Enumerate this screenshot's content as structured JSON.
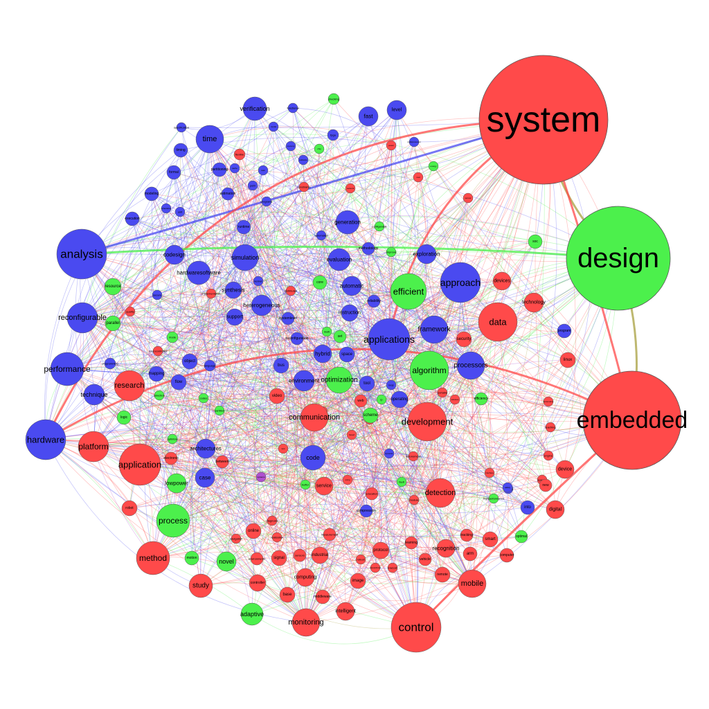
{
  "colors": {
    "red": "#ff4a4a",
    "blue": "#4a4af0",
    "green": "#4cf04c",
    "purple": "#b050d0",
    "olive": "#a8a040",
    "stroke": "#555555"
  },
  "nodes": [
    {
      "label": "system",
      "group": "red"
    },
    {
      "label": "design",
      "group": "green"
    },
    {
      "label": "embedded",
      "group": "red"
    },
    {
      "label": "applications",
      "group": "blue"
    },
    {
      "label": "approach",
      "group": "blue"
    },
    {
      "label": "analysis",
      "group": "blue"
    },
    {
      "label": "control",
      "group": "red"
    },
    {
      "label": "development",
      "group": "red"
    },
    {
      "label": "application",
      "group": "red"
    },
    {
      "label": "hardware",
      "group": "blue"
    },
    {
      "label": "efficient",
      "group": "green"
    },
    {
      "label": "algorithm",
      "group": "green"
    },
    {
      "label": "data",
      "group": "red"
    },
    {
      "label": "communication",
      "group": "red"
    },
    {
      "label": "process",
      "group": "green"
    },
    {
      "label": "method",
      "group": "red"
    },
    {
      "label": "performance",
      "group": "blue"
    },
    {
      "label": "reconfigurable",
      "group": "blue"
    },
    {
      "label": "detection",
      "group": "red"
    },
    {
      "label": "platform",
      "group": "red"
    },
    {
      "label": "research",
      "group": "red"
    },
    {
      "label": "monitoring",
      "group": "red"
    },
    {
      "label": "optimization",
      "group": "green"
    },
    {
      "label": "framework",
      "group": "blue"
    },
    {
      "label": "processors",
      "group": "blue"
    },
    {
      "label": "time",
      "group": "blue"
    },
    {
      "label": "mobile",
      "group": "red"
    },
    {
      "label": "simulation",
      "group": "blue"
    },
    {
      "label": "code",
      "group": "blue"
    },
    {
      "label": "hardwaresoftware",
      "group": "blue"
    },
    {
      "label": "verification",
      "group": "blue"
    },
    {
      "label": "study",
      "group": "red"
    },
    {
      "label": "technique",
      "group": "blue"
    },
    {
      "label": "heterogeneous",
      "group": "blue"
    },
    {
      "label": "evaluation",
      "group": "blue"
    },
    {
      "label": "generation",
      "group": "blue"
    },
    {
      "label": "novel",
      "group": "green"
    },
    {
      "label": "adaptive",
      "group": "green"
    },
    {
      "label": "technology",
      "group": "red"
    },
    {
      "label": "devices",
      "group": "red"
    },
    {
      "label": "architectures",
      "group": "blue"
    },
    {
      "label": "environment",
      "group": "blue"
    },
    {
      "label": "lowpower",
      "group": "green"
    },
    {
      "label": "fast",
      "group": "blue"
    },
    {
      "label": "codesign",
      "group": "blue"
    },
    {
      "label": "automatic",
      "group": "blue"
    },
    {
      "label": "exploration",
      "group": "blue"
    },
    {
      "label": "case",
      "group": "blue"
    },
    {
      "label": "level",
      "group": "blue"
    },
    {
      "label": "synthesis",
      "group": "blue"
    },
    {
      "label": "hybrid",
      "group": "blue"
    },
    {
      "label": "support",
      "group": "blue"
    },
    {
      "label": "instruction",
      "group": "blue"
    },
    {
      "label": "recognition",
      "group": "red"
    },
    {
      "label": "security",
      "group": "red"
    },
    {
      "label": "digital",
      "group": "red"
    },
    {
      "label": "intelligent",
      "group": "red"
    },
    {
      "label": "computing",
      "group": "red"
    },
    {
      "label": "service",
      "group": "red"
    },
    {
      "label": "device",
      "group": "red"
    },
    {
      "label": "mapping",
      "group": "blue"
    },
    {
      "label": "flow",
      "group": "blue"
    },
    {
      "label": "object",
      "group": "blue"
    },
    {
      "label": "parallel",
      "group": "green"
    },
    {
      "label": "resource",
      "group": "green"
    },
    {
      "label": "space",
      "group": "blue"
    },
    {
      "label": "bus",
      "group": "blue"
    },
    {
      "label": "tool",
      "group": "blue"
    },
    {
      "label": "operating",
      "group": "blue"
    },
    {
      "label": "scheme",
      "group": "green"
    },
    {
      "label": "video",
      "group": "red"
    },
    {
      "label": "web",
      "group": "red"
    },
    {
      "label": "soc",
      "group": "green"
    },
    {
      "label": "linux",
      "group": "red"
    },
    {
      "label": "program",
      "group": "blue"
    },
    {
      "label": "into",
      "group": "blue"
    },
    {
      "label": "smart",
      "group": "red"
    },
    {
      "label": "arm",
      "group": "red"
    },
    {
      "label": "remote",
      "group": "red"
    },
    {
      "label": "signal",
      "group": "red"
    },
    {
      "label": "industrial",
      "group": "red"
    },
    {
      "label": "protocol",
      "group": "red"
    },
    {
      "label": "image",
      "group": "red"
    },
    {
      "label": "base",
      "group": "red"
    },
    {
      "label": "middleware",
      "group": "red"
    },
    {
      "label": "online",
      "group": "red"
    },
    {
      "label": "robot",
      "group": "red"
    },
    {
      "label": "set",
      "group": "green"
    },
    {
      "label": "core",
      "group": "green"
    },
    {
      "label": "logic",
      "group": "green"
    },
    {
      "label": "motion",
      "group": "green"
    },
    {
      "label": "controller",
      "group": "red"
    },
    {
      "label": "formal",
      "group": "blue"
    },
    {
      "label": "modeling",
      "group": "blue"
    },
    {
      "label": "timing",
      "group": "blue"
    },
    {
      "label": "execution",
      "group": "blue"
    },
    {
      "label": "partitioning",
      "group": "blue"
    },
    {
      "label": "estimation",
      "group": "blue"
    },
    {
      "label": "runtime",
      "group": "blue"
    },
    {
      "label": "methodology",
      "group": "blue"
    },
    {
      "label": "reliability",
      "group": "blue"
    },
    {
      "label": "systemlevel",
      "group": "blue"
    },
    {
      "label": "reconfiguration",
      "group": "blue"
    },
    {
      "label": "compression",
      "group": "blue"
    },
    {
      "label": "electronic",
      "group": "red"
    },
    {
      "label": "between",
      "group": "red"
    },
    {
      "label": "efficiency",
      "group": "green"
    },
    {
      "label": "optimal",
      "group": "green"
    },
    {
      "label": "computer",
      "group": "red"
    },
    {
      "label": "vehicle",
      "group": "red"
    },
    {
      "label": "learning",
      "group": "red"
    },
    {
      "label": "measurement",
      "group": "red"
    },
    {
      "label": "sensors",
      "group": "red"
    },
    {
      "label": "environments",
      "group": "red"
    },
    {
      "label": "new",
      "group": "red"
    },
    {
      "label": "tracking",
      "group": "red"
    },
    {
      "label": "education",
      "group": "red"
    },
    {
      "label": "language",
      "group": "blue"
    },
    {
      "label": "programming",
      "group": "blue"
    },
    {
      "label": "mode",
      "group": "green"
    },
    {
      "label": "specification",
      "group": "blue"
    },
    {
      "label": "functional",
      "group": "blue"
    },
    {
      "label": "checking",
      "group": "green"
    },
    {
      "label": "flexible",
      "group": "red"
    },
    {
      "label": "unit",
      "group": "blue"
    },
    {
      "label": "petri",
      "group": "blue"
    },
    {
      "label": "programs",
      "group": "blue"
    },
    {
      "label": "constraints",
      "group": "red"
    },
    {
      "label": "automated",
      "group": "blue"
    },
    {
      "label": "configurable",
      "group": "green"
    },
    {
      "label": "improve",
      "group": "green"
    },
    {
      "label": "secure",
      "group": "blue"
    },
    {
      "label": "implementation",
      "group": "red"
    },
    {
      "label": "kernel",
      "group": "blue"
    },
    {
      "label": "implementing",
      "group": "red"
    },
    {
      "label": "quality",
      "group": "red"
    },
    {
      "label": "selection",
      "group": "green"
    },
    {
      "label": "microcontroller",
      "group": "red"
    },
    {
      "label": "optimize",
      "group": "green"
    },
    {
      "label": "codes",
      "group": "green"
    },
    {
      "label": "buffer",
      "group": "green"
    },
    {
      "label": "autonomous",
      "group": "red"
    },
    {
      "label": "speech",
      "group": "red"
    },
    {
      "label": "highperformance",
      "group": "green"
    },
    {
      "label": "industry",
      "group": "blue"
    },
    {
      "label": "teaching",
      "group": "red"
    },
    {
      "label": "engine",
      "group": "red"
    },
    {
      "label": "module",
      "group": "red"
    },
    {
      "label": "ip",
      "group": "green"
    },
    {
      "label": "portable",
      "group": "red"
    },
    {
      "label": "vision",
      "group": "red"
    },
    {
      "label": "loop",
      "group": "blue"
    },
    {
      "label": "multi",
      "group": "green"
    },
    {
      "label": "diagnosis",
      "group": "red"
    },
    {
      "label": "realization",
      "group": "red"
    },
    {
      "label": "navigation",
      "group": "red"
    },
    {
      "label": "lowcost",
      "group": "red"
    },
    {
      "label": "robust",
      "group": "red"
    },
    {
      "label": "hierarchical",
      "group": "red"
    },
    {
      "label": "distributed",
      "group": "red"
    },
    {
      "label": "fpga",
      "group": "blue"
    },
    {
      "label": "partition",
      "group": "green"
    },
    {
      "label": "fault",
      "group": "green"
    },
    {
      "label": "network",
      "group": "red"
    },
    {
      "label": "power",
      "group": "red"
    },
    {
      "label": "memory",
      "group": "blue"
    },
    {
      "label": "model",
      "group": "blue"
    },
    {
      "label": "software",
      "group": "blue"
    },
    {
      "label": "energy",
      "group": "green"
    },
    {
      "label": "real",
      "group": "red"
    },
    {
      "label": "multiprocessor",
      "group": "blue"
    },
    {
      "label": "wireless",
      "group": "red"
    },
    {
      "label": "sensor",
      "group": "red"
    },
    {
      "label": "scheduling",
      "group": "blue"
    },
    {
      "label": "cache",
      "group": "blue"
    },
    {
      "label": "task",
      "group": "blue"
    },
    {
      "label": "chip",
      "group": "green"
    },
    {
      "label": "test",
      "group": "red"
    },
    {
      "label": "using",
      "group": "red"
    },
    {
      "label": "based",
      "group": "red"
    },
    {
      "label": "dynamic",
      "group": "blue"
    },
    {
      "label": "interface",
      "group": "red"
    },
    {
      "label": "safety",
      "group": "blue"
    },
    {
      "label": "automotive",
      "group": "red"
    },
    {
      "label": "systems",
      "group": "purple"
    }
  ]
}
